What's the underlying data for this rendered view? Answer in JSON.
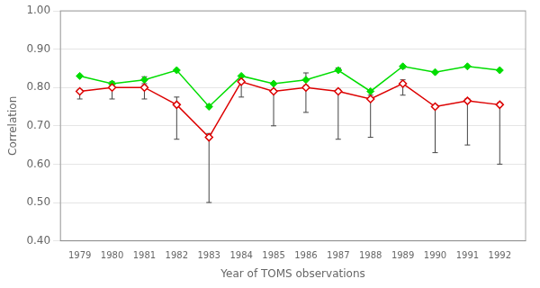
{
  "chart_data": {
    "type": "line",
    "x": [
      1979,
      1980,
      1981,
      1982,
      1983,
      1984,
      1985,
      1986,
      1987,
      1988,
      1989,
      1990,
      1991,
      1992
    ],
    "series": [
      {
        "color": "#dd0000",
        "marker": "open_diamond",
        "values": [
          0.79,
          0.8,
          0.8,
          0.755,
          0.67,
          0.815,
          0.79,
          0.8,
          0.79,
          0.77,
          0.81,
          0.75,
          0.765,
          0.755
        ],
        "yerr_lo": [
          0.02,
          0.03,
          0.03,
          0.09,
          0.17,
          0.04,
          0.09,
          0.065,
          0.125,
          0.1,
          0.03,
          0.12,
          0.115,
          0.155
        ],
        "yerr_hi": [
          0.005,
          0.005,
          0.005,
          0.02,
          0.01,
          0.005,
          0.005,
          0.005,
          0.005,
          0.01,
          0.01,
          0.005,
          0.005,
          0.005
        ]
      },
      {
        "color": "#00dd00",
        "marker": "diamond",
        "values": [
          0.83,
          0.81,
          0.82,
          0.845,
          0.75,
          0.83,
          0.81,
          0.82,
          0.845,
          0.79,
          0.855,
          0.84,
          0.855,
          0.845
        ],
        "yerr_lo": [
          0.0,
          0.0,
          0.01,
          0.0,
          0.0,
          0.015,
          0.0,
          0.0,
          0.0,
          0.0,
          0.005,
          0.0,
          0.0,
          0.0
        ],
        "yerr_hi": [
          0.0,
          0.005,
          0.008,
          0.0,
          0.005,
          0.0,
          0.0,
          0.018,
          0.006,
          0.004,
          0.0,
          0.0,
          0.0,
          0.0
        ]
      }
    ],
    "xlabel": "Year of TOMS observations",
    "ylabel": "Correlation",
    "xlim": [
      1978.4,
      1992.8
    ],
    "xticks": [
      1979,
      1980,
      1981,
      1982,
      1983,
      1984,
      1985,
      1986,
      1987,
      1988,
      1989,
      1990,
      1991,
      1992
    ],
    "ylim": [
      0.4,
      1.0
    ],
    "yticks": [
      {
        "value": 0.4,
        "label": "0.40"
      },
      {
        "value": 0.5,
        "label": "0.50"
      },
      {
        "value": 0.6,
        "label": "0.60"
      },
      {
        "value": 0.7,
        "label": "0.70"
      },
      {
        "value": 0.8,
        "label": "0.80"
      },
      {
        "value": 0.9,
        "label": "0.90"
      },
      {
        "value": 1.0,
        "label": "1.00"
      }
    ],
    "grid": "y"
  }
}
